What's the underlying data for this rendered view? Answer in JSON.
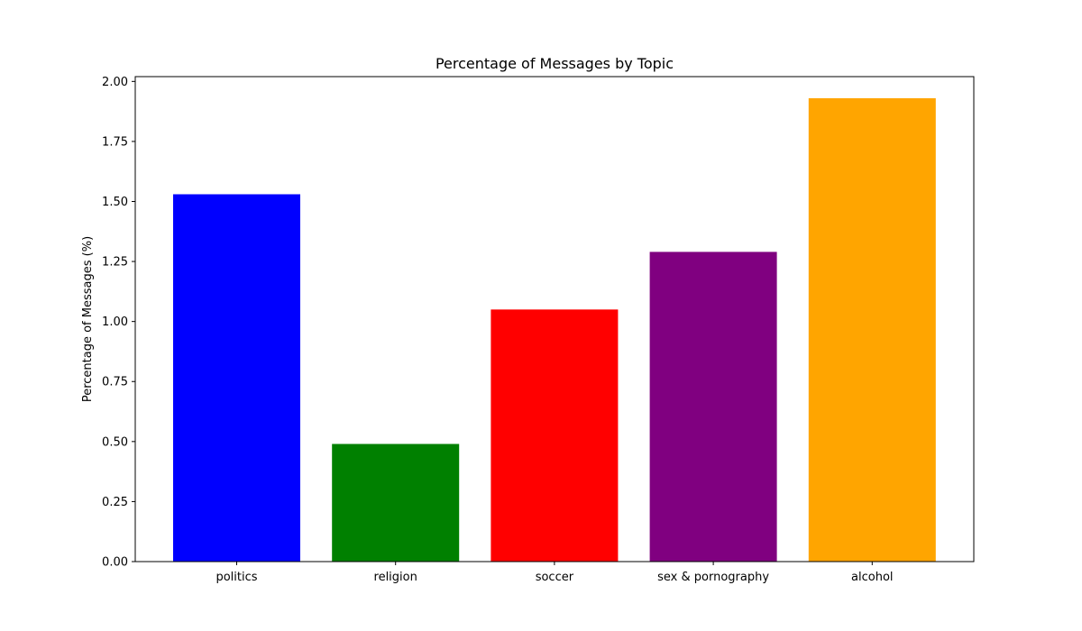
{
  "chart_data": {
    "type": "bar",
    "title": "Percentage of Messages by Topic",
    "xlabel": "",
    "ylabel": "Percentage of Messages (%)",
    "categories": [
      "politics",
      "religion",
      "soccer",
      "sex & pornography",
      "alcohol"
    ],
    "values": [
      1.53,
      0.49,
      1.05,
      1.29,
      1.93
    ],
    "colors": [
      "#0000ff",
      "#008000",
      "#ff0000",
      "#800080",
      "#ffa500"
    ],
    "ylim": [
      0,
      2.02
    ],
    "yticks": [
      "0.00",
      "0.25",
      "0.50",
      "0.75",
      "1.00",
      "1.25",
      "1.50",
      "1.75",
      "2.00"
    ],
    "grid": false,
    "legend": "none"
  }
}
